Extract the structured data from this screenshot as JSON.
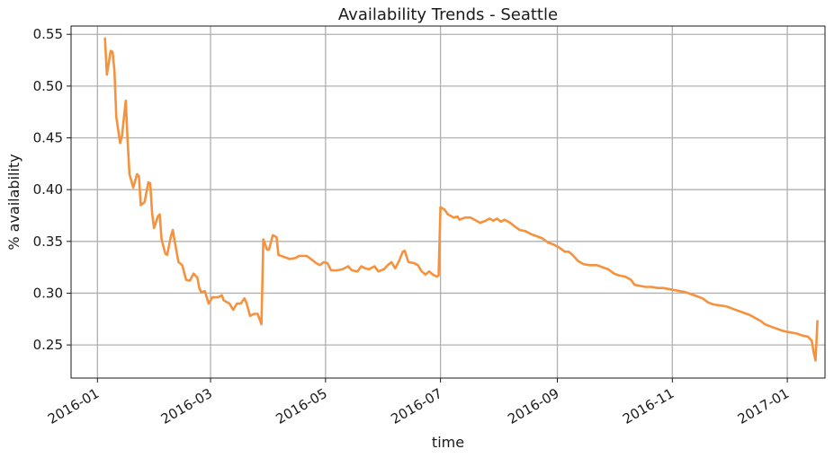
{
  "chart_data": {
    "type": "line",
    "title": "Availability Trends - Seattle",
    "xlabel": "time",
    "ylabel": "% availability",
    "x_ticks": [
      "2016-01",
      "2016-03",
      "2016-05",
      "2016-07",
      "2016-09",
      "2016-11",
      "2017-01"
    ],
    "y_ticks": [
      "0.25",
      "0.30",
      "0.35",
      "0.40",
      "0.45",
      "0.50",
      "0.55"
    ],
    "xlim": [
      "2015-12-18",
      "2017-01-21"
    ],
    "ylim": [
      0.218,
      0.558
    ],
    "grid": true,
    "line_color": "#F5923E",
    "series": [
      {
        "points": [
          [
            "2016-01-05",
            0.546
          ],
          [
            "2016-01-06",
            0.511
          ],
          [
            "2016-01-08",
            0.534
          ],
          [
            "2016-01-09",
            0.533
          ],
          [
            "2016-01-10",
            0.515
          ],
          [
            "2016-01-11",
            0.47
          ],
          [
            "2016-01-13",
            0.445
          ],
          [
            "2016-01-14",
            0.452
          ],
          [
            "2016-01-16",
            0.486
          ],
          [
            "2016-01-17",
            0.448
          ],
          [
            "2016-01-18",
            0.415
          ],
          [
            "2016-01-20",
            0.402
          ],
          [
            "2016-01-22",
            0.415
          ],
          [
            "2016-01-23",
            0.413
          ],
          [
            "2016-01-24",
            0.385
          ],
          [
            "2016-01-26",
            0.388
          ],
          [
            "2016-01-28",
            0.407
          ],
          [
            "2016-01-29",
            0.406
          ],
          [
            "2016-01-30",
            0.377
          ],
          [
            "2016-01-31",
            0.363
          ],
          [
            "2016-02-02",
            0.374
          ],
          [
            "2016-02-03",
            0.376
          ],
          [
            "2016-02-04",
            0.352
          ],
          [
            "2016-02-06",
            0.338
          ],
          [
            "2016-02-07",
            0.337
          ],
          [
            "2016-02-09",
            0.355
          ],
          [
            "2016-02-10",
            0.361
          ],
          [
            "2016-02-11",
            0.35
          ],
          [
            "2016-02-13",
            0.33
          ],
          [
            "2016-02-15",
            0.327
          ],
          [
            "2016-02-17",
            0.313
          ],
          [
            "2016-02-19",
            0.312
          ],
          [
            "2016-02-21",
            0.319
          ],
          [
            "2016-02-23",
            0.315
          ],
          [
            "2016-02-24",
            0.305
          ],
          [
            "2016-02-25",
            0.301
          ],
          [
            "2016-02-27",
            0.302
          ],
          [
            "2016-02-29",
            0.29
          ],
          [
            "2016-03-02",
            0.296
          ],
          [
            "2016-03-05",
            0.296
          ],
          [
            "2016-03-07",
            0.298
          ],
          [
            "2016-03-08",
            0.293
          ],
          [
            "2016-03-11",
            0.29
          ],
          [
            "2016-03-13",
            0.284
          ],
          [
            "2016-03-15",
            0.29
          ],
          [
            "2016-03-17",
            0.29
          ],
          [
            "2016-03-19",
            0.295
          ],
          [
            "2016-03-20",
            0.291
          ],
          [
            "2016-03-22",
            0.278
          ],
          [
            "2016-03-24",
            0.28
          ],
          [
            "2016-03-26",
            0.28
          ],
          [
            "2016-03-28",
            0.27
          ],
          [
            "2016-03-29",
            0.352
          ],
          [
            "2016-03-31",
            0.342
          ],
          [
            "2016-04-01",
            0.342
          ],
          [
            "2016-04-03",
            0.356
          ],
          [
            "2016-04-05",
            0.354
          ],
          [
            "2016-04-06",
            0.337
          ],
          [
            "2016-04-09",
            0.335
          ],
          [
            "2016-04-12",
            0.333
          ],
          [
            "2016-04-15",
            0.334
          ],
          [
            "2016-04-17",
            0.336
          ],
          [
            "2016-04-21",
            0.336
          ],
          [
            "2016-04-24",
            0.332
          ],
          [
            "2016-04-26",
            0.329
          ],
          [
            "2016-04-28",
            0.327
          ],
          [
            "2016-04-30",
            0.33
          ],
          [
            "2016-05-02",
            0.329
          ],
          [
            "2016-05-04",
            0.322
          ],
          [
            "2016-05-07",
            0.322
          ],
          [
            "2016-05-10",
            0.323
          ],
          [
            "2016-05-13",
            0.326
          ],
          [
            "2016-05-15",
            0.322
          ],
          [
            "2016-05-18",
            0.321
          ],
          [
            "2016-05-20",
            0.326
          ],
          [
            "2016-05-22",
            0.324
          ],
          [
            "2016-05-24",
            0.323
          ],
          [
            "2016-05-27",
            0.326
          ],
          [
            "2016-05-29",
            0.321
          ],
          [
            "2016-06-01",
            0.323
          ],
          [
            "2016-06-03",
            0.327
          ],
          [
            "2016-06-05",
            0.33
          ],
          [
            "2016-06-07",
            0.324
          ],
          [
            "2016-06-09",
            0.331
          ],
          [
            "2016-06-11",
            0.34
          ],
          [
            "2016-06-12",
            0.341
          ],
          [
            "2016-06-14",
            0.33
          ],
          [
            "2016-06-17",
            0.329
          ],
          [
            "2016-06-19",
            0.327
          ],
          [
            "2016-06-21",
            0.321
          ],
          [
            "2016-06-23",
            0.318
          ],
          [
            "2016-06-25",
            0.321
          ],
          [
            "2016-06-27",
            0.318
          ],
          [
            "2016-06-29",
            0.316
          ],
          [
            "2016-06-30",
            0.317
          ],
          [
            "2016-07-01",
            0.383
          ],
          [
            "2016-07-03",
            0.381
          ],
          [
            "2016-07-05",
            0.376
          ],
          [
            "2016-07-08",
            0.373
          ],
          [
            "2016-07-10",
            0.374
          ],
          [
            "2016-07-11",
            0.371
          ],
          [
            "2016-07-14",
            0.373
          ],
          [
            "2016-07-17",
            0.373
          ],
          [
            "2016-07-19",
            0.371
          ],
          [
            "2016-07-22",
            0.368
          ],
          [
            "2016-07-25",
            0.37
          ],
          [
            "2016-07-27",
            0.372
          ],
          [
            "2016-07-29",
            0.37
          ],
          [
            "2016-07-31",
            0.372
          ],
          [
            "2016-08-02",
            0.369
          ],
          [
            "2016-08-04",
            0.371
          ],
          [
            "2016-08-07",
            0.368
          ],
          [
            "2016-08-09",
            0.365
          ],
          [
            "2016-08-12",
            0.361
          ],
          [
            "2016-08-15",
            0.36
          ],
          [
            "2016-08-18",
            0.357
          ],
          [
            "2016-08-21",
            0.355
          ],
          [
            "2016-08-24",
            0.353
          ],
          [
            "2016-08-27",
            0.349
          ],
          [
            "2016-08-30",
            0.347
          ],
          [
            "2016-09-02",
            0.344
          ],
          [
            "2016-09-05",
            0.34
          ],
          [
            "2016-09-07",
            0.34
          ],
          [
            "2016-09-09",
            0.337
          ],
          [
            "2016-09-12",
            0.331
          ],
          [
            "2016-09-15",
            0.328
          ],
          [
            "2016-09-18",
            0.327
          ],
          [
            "2016-09-22",
            0.327
          ],
          [
            "2016-09-25",
            0.325
          ],
          [
            "2016-09-28",
            0.323
          ],
          [
            "2016-10-01",
            0.319
          ],
          [
            "2016-10-04",
            0.317
          ],
          [
            "2016-10-07",
            0.316
          ],
          [
            "2016-10-10",
            0.313
          ],
          [
            "2016-10-12",
            0.308
          ],
          [
            "2016-10-15",
            0.307
          ],
          [
            "2016-10-18",
            0.306
          ],
          [
            "2016-10-21",
            0.306
          ],
          [
            "2016-10-24",
            0.305
          ],
          [
            "2016-10-27",
            0.305
          ],
          [
            "2016-10-30",
            0.304
          ],
          [
            "2016-11-02",
            0.303
          ],
          [
            "2016-11-05",
            0.302
          ],
          [
            "2016-11-08",
            0.301
          ],
          [
            "2016-11-11",
            0.299
          ],
          [
            "2016-11-14",
            0.297
          ],
          [
            "2016-11-17",
            0.295
          ],
          [
            "2016-11-20",
            0.291
          ],
          [
            "2016-11-23",
            0.289
          ],
          [
            "2016-11-27",
            0.288
          ],
          [
            "2016-11-30",
            0.287
          ],
          [
            "2016-12-03",
            0.285
          ],
          [
            "2016-12-06",
            0.283
          ],
          [
            "2016-12-09",
            0.281
          ],
          [
            "2016-12-12",
            0.279
          ],
          [
            "2016-12-15",
            0.276
          ],
          [
            "2016-12-18",
            0.273
          ],
          [
            "2016-12-20",
            0.27
          ],
          [
            "2016-12-23",
            0.268
          ],
          [
            "2016-12-26",
            0.266
          ],
          [
            "2016-12-29",
            0.264
          ],
          [
            "2016-12-31",
            0.263
          ],
          [
            "2017-01-03",
            0.262
          ],
          [
            "2017-01-06",
            0.261
          ],
          [
            "2017-01-09",
            0.259
          ],
          [
            "2017-01-12",
            0.258
          ],
          [
            "2017-01-14",
            0.254
          ],
          [
            "2017-01-15",
            0.243
          ],
          [
            "2017-01-16",
            0.235
          ],
          [
            "2017-01-17",
            0.273
          ]
        ]
      }
    ]
  }
}
